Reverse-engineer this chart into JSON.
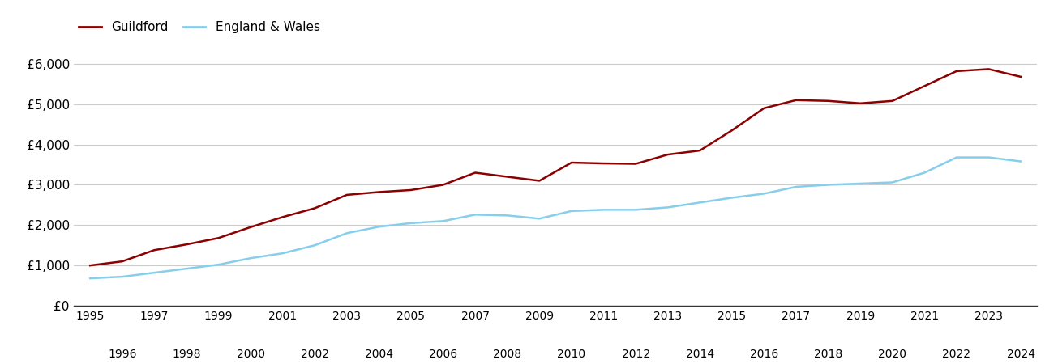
{
  "guildford_years": [
    1995,
    1996,
    1997,
    1998,
    1999,
    2000,
    2001,
    2002,
    2003,
    2004,
    2005,
    2006,
    2007,
    2008,
    2009,
    2010,
    2011,
    2012,
    2013,
    2014,
    2015,
    2016,
    2017,
    2018,
    2019,
    2020,
    2021,
    2022,
    2023,
    2024
  ],
  "guildford_values": [
    1000,
    1100,
    1380,
    1520,
    1680,
    1950,
    2200,
    2420,
    2750,
    2820,
    2870,
    3000,
    3300,
    3200,
    3100,
    3550,
    3530,
    3520,
    3750,
    3850,
    4350,
    4900,
    5100,
    5080,
    5020,
    5080,
    5450,
    5820,
    5870,
    5680
  ],
  "england_years": [
    1995,
    1996,
    1997,
    1998,
    1999,
    2000,
    2001,
    2002,
    2003,
    2004,
    2005,
    2006,
    2007,
    2008,
    2009,
    2010,
    2011,
    2012,
    2013,
    2014,
    2015,
    2016,
    2017,
    2018,
    2019,
    2020,
    2021,
    2022,
    2023,
    2024
  ],
  "england_values": [
    680,
    720,
    820,
    920,
    1020,
    1180,
    1300,
    1500,
    1800,
    1960,
    2050,
    2100,
    2260,
    2240,
    2160,
    2350,
    2380,
    2380,
    2440,
    2560,
    2680,
    2780,
    2950,
    3000,
    3030,
    3060,
    3300,
    3680,
    3680,
    3580
  ],
  "guildford_color": "#8B0000",
  "england_color": "#87CEEB",
  "line_width": 1.8,
  "legend_labels": [
    "Guildford",
    "England & Wales"
  ],
  "ytick_labels": [
    "£0",
    "£1,000",
    "£2,000",
    "£3,000",
    "£4,000",
    "£5,000",
    "£6,000"
  ],
  "ytick_values": [
    0,
    1000,
    2000,
    3000,
    4000,
    5000,
    6000
  ],
  "ylim": [
    0,
    6500
  ],
  "xlim": [
    1994.5,
    2024.5
  ],
  "xtick_top": [
    1995,
    1997,
    1999,
    2001,
    2003,
    2005,
    2007,
    2009,
    2011,
    2013,
    2015,
    2017,
    2019,
    2021,
    2023
  ],
  "xtick_bottom": [
    1996,
    1998,
    2000,
    2002,
    2004,
    2006,
    2008,
    2010,
    2012,
    2014,
    2016,
    2018,
    2020,
    2022,
    2024
  ],
  "background_color": "#ffffff",
  "grid_color": "#cccccc",
  "legend_fontsize": 11,
  "tick_fontsize": 10,
  "ytick_fontsize": 11
}
